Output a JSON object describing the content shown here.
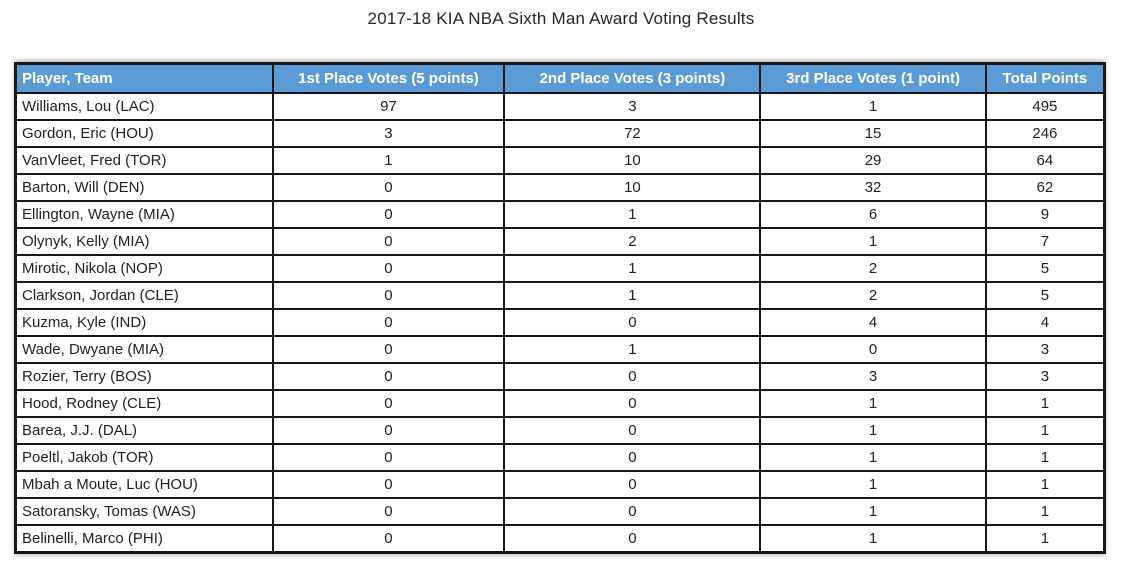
{
  "title": "2017-18 KIA NBA Sixth Man Award Voting Results",
  "colors": {
    "header_bg": "#5B9BD5",
    "header_text": "#FFFFFF",
    "border": "#161616",
    "body_text": "#1F1F1F",
    "background": "#FFFFFF"
  },
  "chart_data": {
    "type": "table",
    "title": "2017-18 KIA NBA Sixth Man Award Voting Results",
    "columns": [
      "Player, Team",
      "1st Place Votes (5 points)",
      "2nd Place Votes (3 points)",
      "3rd Place Votes (1 point)",
      "Total Points"
    ],
    "rows": [
      [
        "Williams, Lou (LAC)",
        97,
        3,
        1,
        495
      ],
      [
        "Gordon, Eric (HOU)",
        3,
        72,
        15,
        246
      ],
      [
        "VanVleet, Fred (TOR)",
        1,
        10,
        29,
        64
      ],
      [
        "Barton, Will (DEN)",
        0,
        10,
        32,
        62
      ],
      [
        "Ellington, Wayne (MIA)",
        0,
        1,
        6,
        9
      ],
      [
        "Olynyk, Kelly (MIA)",
        0,
        2,
        1,
        7
      ],
      [
        "Mirotic, Nikola (NOP)",
        0,
        1,
        2,
        5
      ],
      [
        "Clarkson, Jordan (CLE)",
        0,
        1,
        2,
        5
      ],
      [
        "Kuzma, Kyle (IND)",
        0,
        0,
        4,
        4
      ],
      [
        "Wade, Dwyane (MIA)",
        0,
        1,
        0,
        3
      ],
      [
        "Rozier, Terry (BOS)",
        0,
        0,
        3,
        3
      ],
      [
        "Hood, Rodney (CLE)",
        0,
        0,
        1,
        1
      ],
      [
        "Barea, J.J. (DAL)",
        0,
        0,
        1,
        1
      ],
      [
        "Poeltl, Jakob (TOR)",
        0,
        0,
        1,
        1
      ],
      [
        "Mbah a Moute, Luc (HOU)",
        0,
        0,
        1,
        1
      ],
      [
        "Satoransky, Tomas (WAS)",
        0,
        0,
        1,
        1
      ],
      [
        "Belinelli, Marco (PHI)",
        0,
        0,
        1,
        1
      ]
    ]
  }
}
